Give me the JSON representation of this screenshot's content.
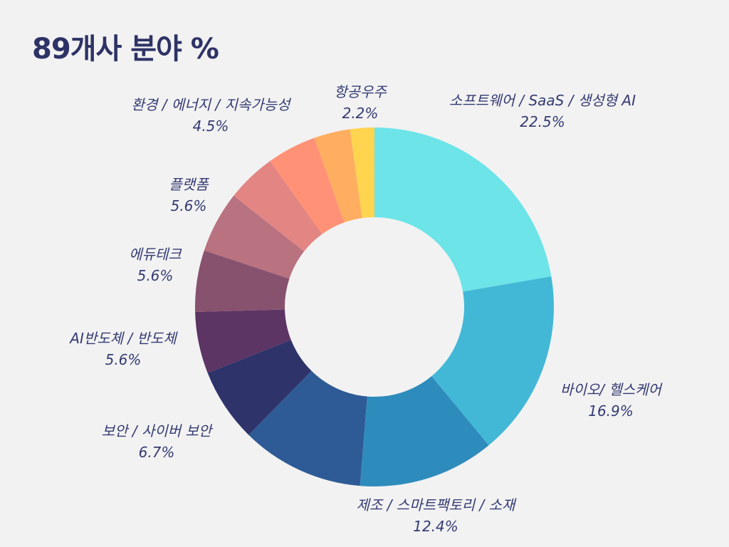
{
  "chart_data": {
    "type": "pie",
    "title": "89개사 분야 %",
    "hole": true,
    "slices": [
      {
        "label": "소프트웨어 / SaaS / 생성형 AI",
        "value_label": "22.5%",
        "value": 22.5,
        "color": "#6ce4e8"
      },
      {
        "label": "바이오/ 헬스케어",
        "value_label": "16.9%",
        "value": 16.9,
        "color": "#42b8d6"
      },
      {
        "label": "제조 / 스마트팩토리 / 소재",
        "value_label": "12.4%",
        "value": 12.4,
        "color": "#2e8cbc"
      },
      {
        "label": "",
        "value_label": "",
        "value": 11.2,
        "color": "#2e5b96"
      },
      {
        "label": "보안 / 사이버 보안",
        "value_label": "6.7%",
        "value": 6.7,
        "color": "#2e336a"
      },
      {
        "label": "AI반도체 / 반도체",
        "value_label": "5.6%",
        "value": 5.6,
        "color": "#5c3564"
      },
      {
        "label": "에듀테크",
        "value_label": "5.6%",
        "value": 5.6,
        "color": "#87526e"
      },
      {
        "label": "플랫폼",
        "value_label": "5.6%",
        "value": 5.6,
        "color": "#b97280"
      },
      {
        "label": "",
        "value_label": "",
        "value": 4.5,
        "color": "#e38583"
      },
      {
        "label": "환경 / 에너지 / 지속가능성",
        "value_label": "4.5%",
        "value": 4.5,
        "color": "#ff9177"
      },
      {
        "label": "",
        "value_label": "",
        "value": 3.3,
        "color": "#ffad60"
      },
      {
        "label": "항공우주",
        "value_label": "2.2%",
        "value": 2.2,
        "color": "#ffd550"
      }
    ]
  }
}
